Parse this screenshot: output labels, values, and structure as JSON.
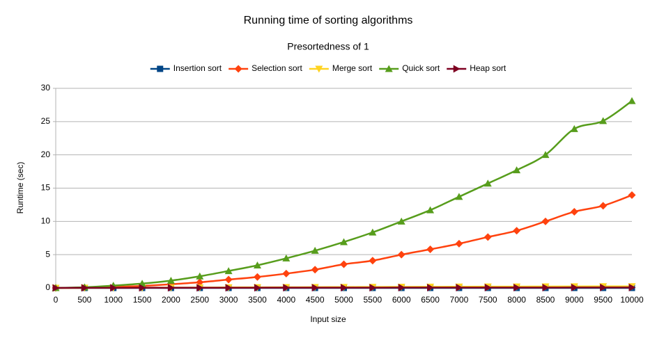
{
  "chart_data": {
    "type": "line",
    "title": "Running time of sorting algorithms",
    "subtitle": "Presortedness of 1",
    "x_label": "Input size",
    "y_label": "Runtime (sec)",
    "x": [
      0,
      500,
      1000,
      1500,
      2000,
      2500,
      3000,
      3500,
      4000,
      4500,
      5000,
      5500,
      6000,
      6500,
      7000,
      7500,
      8000,
      8500,
      9000,
      9500,
      10000
    ],
    "xlim": [
      0,
      10000
    ],
    "xticks": [
      0,
      500,
      1000,
      1500,
      2000,
      2500,
      3000,
      3500,
      4000,
      4500,
      5000,
      5500,
      6000,
      6500,
      7000,
      7500,
      8000,
      8500,
      9000,
      9500,
      10000
    ],
    "ylim": [
      0,
      30
    ],
    "yticks": [
      0,
      5,
      10,
      15,
      20,
      25,
      30
    ],
    "grid": true,
    "legend": "top",
    "series": [
      {
        "name": "Insertion sort",
        "color": "#004586",
        "marker": "square",
        "values": [
          0,
          0,
          0,
          0,
          0,
          0,
          0,
          0,
          0,
          0,
          0,
          0,
          0,
          0,
          0,
          0,
          0,
          0,
          0,
          0,
          0
        ]
      },
      {
        "name": "Selection sort",
        "color": "#ff420e",
        "marker": "diamond",
        "values": [
          0,
          0.05,
          0.15,
          0.3,
          0.55,
          0.85,
          1.25,
          1.65,
          2.15,
          2.75,
          3.55,
          4.1,
          5.0,
          5.8,
          6.65,
          7.65,
          8.6,
          10.0,
          11.45,
          12.35,
          13.95
        ]
      },
      {
        "name": "Merge sort",
        "color": "#ffd320",
        "marker": "triangle-down",
        "values": [
          0,
          0.01,
          0.02,
          0.03,
          0.05,
          0.06,
          0.08,
          0.09,
          0.1,
          0.12,
          0.13,
          0.15,
          0.16,
          0.17,
          0.18,
          0.19,
          0.2,
          0.21,
          0.22,
          0.23,
          0.24
        ]
      },
      {
        "name": "Quick sort",
        "color": "#579d1c",
        "marker": "triangle",
        "values": [
          0,
          0.1,
          0.35,
          0.65,
          1.1,
          1.75,
          2.55,
          3.4,
          4.45,
          5.6,
          6.9,
          8.35,
          10.0,
          11.7,
          13.7,
          15.7,
          17.7,
          20.0,
          23.9,
          25.1,
          28.1
        ]
      },
      {
        "name": "Heap sort",
        "color": "#7e0021",
        "marker": "triangle-right",
        "values": [
          0,
          0.01,
          0.01,
          0.02,
          0.02,
          0.03,
          0.03,
          0.03,
          0.04,
          0.04,
          0.04,
          0.04,
          0.05,
          0.05,
          0.05,
          0.05,
          0.05,
          0.05,
          0.06,
          0.06,
          0.06
        ]
      }
    ]
  }
}
